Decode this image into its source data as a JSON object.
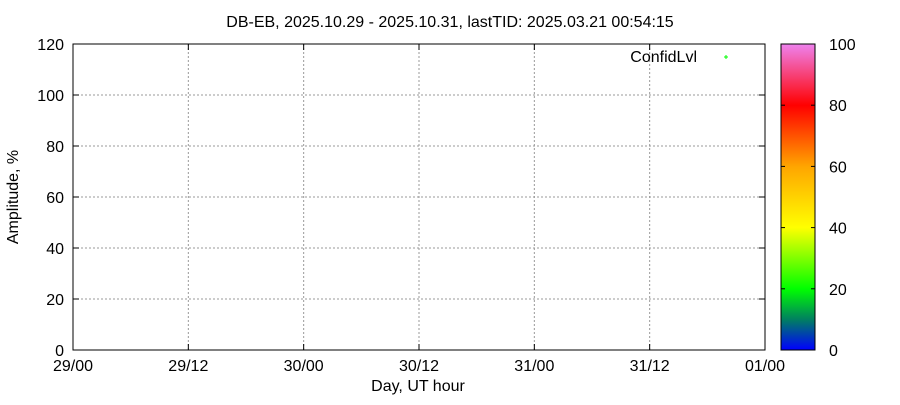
{
  "chart_data": {
    "type": "scatter",
    "title": "DB-EB, 2025.10.29 - 2025.10.31, lastTID: 2025.03.21 00:54:15",
    "xlabel": "Day, UT hour",
    "ylabel": "Amplitude, %",
    "x_ticks": [
      "29/00",
      "29/12",
      "30/00",
      "30/12",
      "31/00",
      "31/12",
      "01/00"
    ],
    "y_ticks": [
      "0",
      "20",
      "40",
      "60",
      "80",
      "100",
      "120"
    ],
    "ylim": [
      0,
      120
    ],
    "grid": true,
    "legend": {
      "placement": "top-right",
      "entries": [
        {
          "label": "ConfidLvl",
          "color": "#00ff00"
        }
      ]
    },
    "series": [
      {
        "name": "ConfidLvl",
        "points": []
      }
    ],
    "colorbar": {
      "range": [
        0,
        100
      ],
      "ticks": [
        "0",
        "20",
        "40",
        "60",
        "80",
        "100"
      ],
      "stops": [
        {
          "value": 0,
          "color": "#0000ff"
        },
        {
          "value": 10,
          "color": "#008060"
        },
        {
          "value": 20,
          "color": "#00ff00"
        },
        {
          "value": 40,
          "color": "#ffff00"
        },
        {
          "value": 60,
          "color": "#ffa500"
        },
        {
          "value": 80,
          "color": "#ff0000"
        },
        {
          "value": 100,
          "color": "#ee82ee"
        }
      ]
    }
  }
}
